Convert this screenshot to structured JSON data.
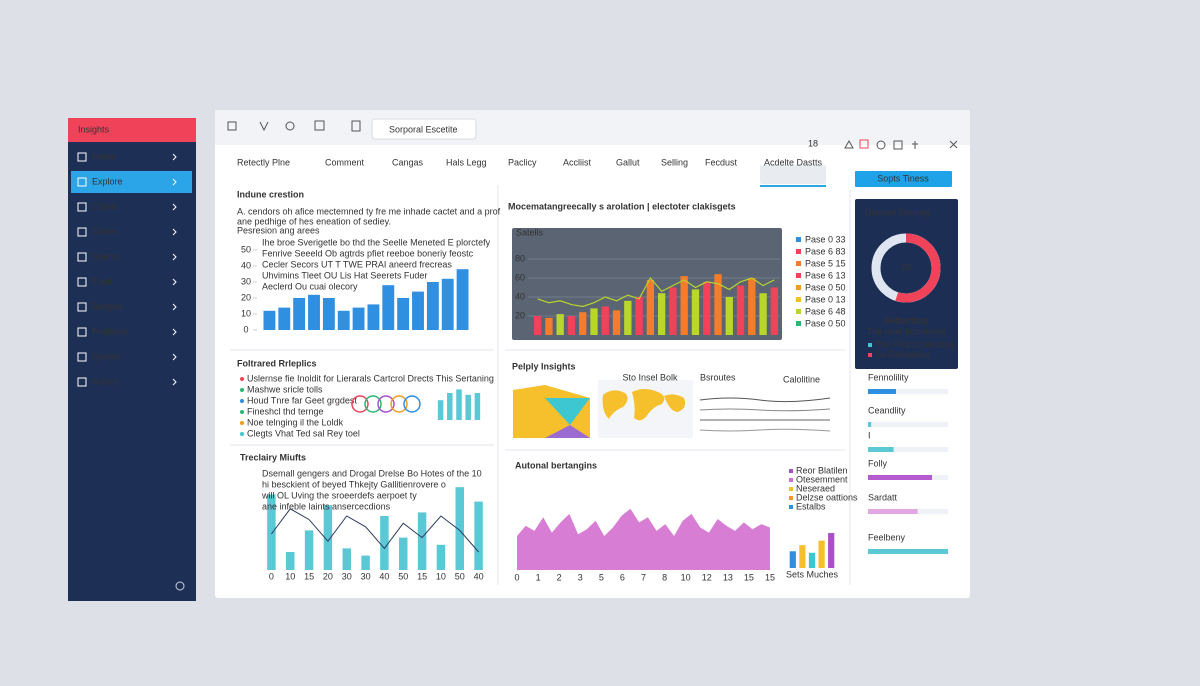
{
  "sidebar": {
    "title": "Insights",
    "active": 1,
    "items": [
      "Home",
      "Explore",
      "Charts",
      "Tables",
      "Stories",
      "Fault",
      "Badges",
      "Positions",
      "Quotes",
      "Actors"
    ]
  },
  "toolbar": {
    "search": "Sorporal Escetite",
    "count": "18"
  },
  "tabs": [
    "Retectly Plne",
    "Comment",
    "Cangas",
    "Hals Legg",
    "Paclicy",
    "Accliist",
    "Gallut",
    "Selling",
    "Fecdust",
    "Acdelte Dastts"
  ],
  "button": "Sopts Tiness",
  "overview": {
    "title": "Indune crestion",
    "text": [
      "A. cendors oh afice mectemned ty fre me inhade cactet and a prof",
      "ane pedhige of hes eneation of sediey."
    ],
    "link": "Pesresion ang arees",
    "notes": [
      "Ihe broe Sverigetle bo thd the Seelle Meneted E plorctefy",
      "Fenrive Seeeld Ob agtrds pfiet reeboe boneriy feostc",
      "Cecler Secors UT T TWE PRAI aneerd frecreas",
      "Uhvimins Tleet OU Lis Hat Seerets Fuder",
      "Aeclerd Ou cuai olecory"
    ],
    "chart": {
      "color": "#2f8fe0",
      "ylim": [
        0,
        50
      ],
      "yticks": [
        0,
        10,
        20,
        30,
        40,
        50
      ],
      "values": [
        12,
        14,
        20,
        22,
        20,
        12,
        14,
        16,
        28,
        20,
        24,
        30,
        32,
        38
      ]
    }
  },
  "featured": {
    "title": "Foltrared Rrleplics",
    "items": [
      {
        "text": "Uslernse fie Inoldit for Lierarals Cartcrol Drects This Sertaning",
        "color": "#f0435a"
      },
      {
        "text": "Mashwe sricle tolls",
        "color": "#2bb673"
      },
      {
        "text": "Houd Tnre far Geet grgdest",
        "color": "#2f8fe0"
      },
      {
        "text": "Fineshcl thd ternge",
        "color": "#2bb673"
      },
      {
        "text": "Noe telnging il the Loldk",
        "color": "#f59a23"
      },
      {
        "text": "Clegts Vhat Ted sal Rey toel",
        "color": "#3cc7d1"
      }
    ],
    "mini_bars": {
      "color": "#5bc8d6",
      "ylim": [
        0,
        40
      ],
      "values": [
        22,
        30,
        34,
        28,
        30
      ]
    }
  },
  "trends": {
    "title": "Treclairy Miufts",
    "text": [
      "Dsemall gengers and Drogal Drelse Bo Hotes of the 10",
      "hi besckient of beyed Thkejty Gallitienrovere o",
      "will OL Uving the sroeerdefs aerpoet ty",
      "ane infeble laints ansercecdions"
    ],
    "chart": {
      "bar_color": "#5bc8d6",
      "line_color": "#2a3b5f",
      "ylim": [
        0,
        50
      ],
      "categories": [
        "0",
        "10",
        "15",
        "20",
        "30",
        "30",
        "40",
        "50",
        "15",
        "10",
        "50",
        "40"
      ],
      "bars": [
        42,
        10,
        22,
        36,
        12,
        8,
        30,
        18,
        32,
        14,
        46,
        38
      ],
      "line": [
        20,
        34,
        28,
        16,
        30,
        24,
        12,
        26,
        18,
        30,
        22,
        10
      ]
    }
  },
  "signals": {
    "title": "Mocematangreecally s arolation | electoter clakisgets",
    "subtitle": "Satells",
    "chart": {
      "ylim": [
        0,
        100
      ],
      "yticks": [
        20,
        40,
        60,
        80
      ],
      "colors": [
        "#f0435a",
        "#f57c2b",
        "#b9d62b"
      ],
      "line_color": "#b9d62b",
      "values": [
        20,
        18,
        22,
        20,
        24,
        28,
        30,
        26,
        36,
        40,
        58,
        44,
        50,
        62,
        48,
        56,
        64,
        40,
        52,
        60,
        44,
        50
      ],
      "line": [
        38,
        34,
        36,
        32,
        30,
        34,
        40,
        36,
        42,
        38,
        60,
        46,
        52,
        58,
        50,
        56,
        54,
        48,
        56,
        60,
        52,
        58
      ]
    },
    "legend": [
      {
        "name": "Pase 0 33",
        "color": "#2f8fe0"
      },
      {
        "name": "Pase 6 83",
        "color": "#f0435a"
      },
      {
        "name": "Pase 5 15",
        "color": "#f57c2b"
      },
      {
        "name": "Pase 6 13",
        "color": "#f0435a"
      },
      {
        "name": "Pase 0 50",
        "color": "#f59a23"
      },
      {
        "name": "Pase 0 13",
        "color": "#f5c02b"
      },
      {
        "name": "Pase 6 48",
        "color": "#b9d62b"
      },
      {
        "name": "Pase 0 50",
        "color": "#2bb673"
      }
    ]
  },
  "insights": {
    "title": "Pelply Insights",
    "labels": [
      "Sto Insel Bolk",
      "Calolitine",
      "Bsroutes"
    ]
  },
  "autonal": {
    "title": "Autonal bertangins",
    "chart": {
      "color": "#d46fcf",
      "ylim": [
        0,
        100
      ],
      "categories": [
        "0",
        "1",
        "2",
        "3",
        "5",
        "6",
        "7",
        "8",
        "10",
        "12",
        "13",
        "15",
        "15"
      ],
      "values": [
        40,
        52,
        46,
        62,
        44,
        56,
        66,
        42,
        48,
        58,
        40,
        50,
        64,
        72,
        56,
        62,
        46,
        54,
        40,
        58,
        66,
        50,
        44,
        60,
        52,
        46,
        56,
        48,
        54,
        50
      ]
    },
    "legend": [
      {
        "name": "Reor Blatilen",
        "color": "#a652c9"
      },
      {
        "name": "Otesemment",
        "color": "#d46fcf"
      },
      {
        "name": "Neseraed",
        "color": "#f5c02b"
      },
      {
        "name": "Delzse oattions",
        "color": "#f59a23"
      },
      {
        "name": "Estalbs",
        "color": "#2f8fe0"
      }
    ],
    "mini_bars": {
      "label": "Sets Muches",
      "ylim": [
        0,
        50
      ],
      "values": [
        22,
        30,
        20,
        36,
        46
      ],
      "colors": [
        "#2f8fe0",
        "#f5c02b",
        "#3cc7d1",
        "#f5c02b",
        "#a652c9"
      ]
    }
  },
  "score": {
    "title": "Dacoad Deckley",
    "value": 55,
    "value_label": "55",
    "label": "Settecting",
    "caption": "The orrel Ircetrersei",
    "arc_color": "#f0435a",
    "track_color": "#dfe6f2",
    "legend": [
      {
        "name": "The Pilot contecting",
        "color": "#3cc7d1"
      },
      {
        "name": "Sa Ranlidiess",
        "color": "#f0435a"
      }
    ]
  },
  "progress": [
    {
      "label": "Fennolility",
      "value": 35,
      "color": "#2f8fe0"
    },
    {
      "label": "Ceandlity",
      "value": 4,
      "color": "#5bc8d6"
    },
    {
      "label": "I",
      "value": 32,
      "color": "#5bc8d6"
    },
    {
      "label": "Folly",
      "value": 80,
      "color": "#b45ccf"
    },
    {
      "label": "Sardatt",
      "value": 62,
      "color": "#e2a6e3"
    },
    {
      "label": "Feelbeny",
      "value": 100,
      "color": "#5bc8d6"
    }
  ]
}
